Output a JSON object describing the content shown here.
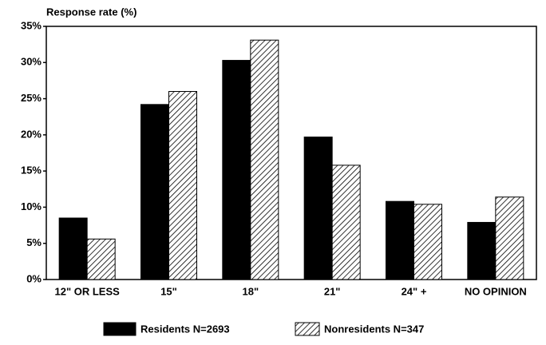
{
  "chart_data": {
    "type": "bar",
    "y_label": "Response rate (%)",
    "categories": [
      "12\" OR LESS",
      "15\"",
      "18\"",
      "21\"",
      "24\" +",
      "NO OPINION"
    ],
    "series": [
      {
        "name": "Residents N=2693",
        "color": "#000000",
        "pattern": "solid",
        "values": [
          8.5,
          24.2,
          30.3,
          19.7,
          10.8,
          7.9
        ]
      },
      {
        "name": "Nonresidents N=347",
        "color": "#000000",
        "pattern": "hatch",
        "values": [
          5.6,
          26.0,
          33.1,
          15.8,
          10.4,
          11.4
        ]
      }
    ],
    "ylim": [
      0,
      35
    ],
    "yticks": [
      {
        "value": 0,
        "label": "0%"
      },
      {
        "value": 5,
        "label": "5%"
      },
      {
        "value": 10,
        "label": "10%"
      },
      {
        "value": 15,
        "label": "15%"
      },
      {
        "value": 20,
        "label": "20%"
      },
      {
        "value": 25,
        "label": "25%"
      },
      {
        "value": 30,
        "label": "30%"
      },
      {
        "value": 35,
        "label": "35%"
      }
    ],
    "grid": false,
    "legend": "bottom"
  }
}
